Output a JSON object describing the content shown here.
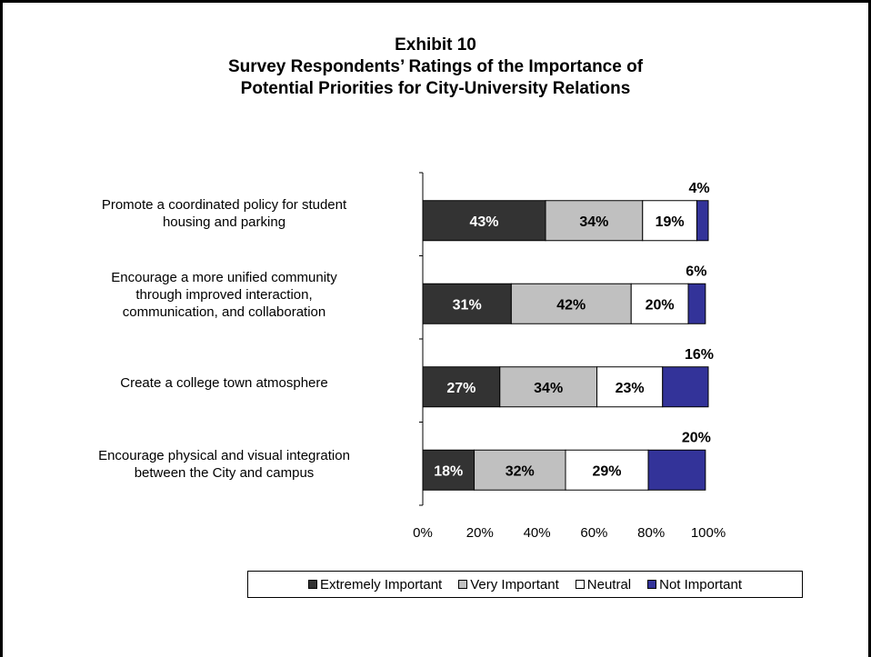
{
  "chart_data": {
    "type": "bar",
    "orientation": "horizontal",
    "stacked": "percent",
    "title": "Exhibit 10",
    "subtitle_lines": [
      "Survey Respondents’ Ratings of the Importance of",
      "Potential Priorities for City-University Relations"
    ],
    "categories": [
      "Promote a coordinated policy for student housing and parking",
      "Encourage a more unified community through improved interaction, communication, and collaboration",
      "Create a college town atmosphere",
      "Encourage physical and visual integration between the City and campus"
    ],
    "category_label_lines": [
      [
        "Promote a coordinated policy for student",
        "housing and parking"
      ],
      [
        "Encourage a more unified community",
        "through improved interaction,",
        "communication, and collaboration"
      ],
      [
        "Create a college town atmosphere"
      ],
      [
        "Encourage physical and visual integration",
        "between the City and campus"
      ]
    ],
    "series": [
      {
        "name": "Extremely Important",
        "color": "#333333",
        "label_color": "#ffffff",
        "values": [
          43,
          31,
          27,
          18
        ]
      },
      {
        "name": "Very Important",
        "color": "#c0c0c0",
        "label_color": "#000000",
        "values": [
          34,
          42,
          34,
          32
        ]
      },
      {
        "name": "Neutral",
        "color": "#ffffff",
        "label_color": "#000000",
        "values": [
          19,
          20,
          23,
          29
        ]
      },
      {
        "name": "Not Important",
        "color": "#333399",
        "label_color": "#000000",
        "values": [
          4,
          6,
          16,
          20
        ]
      }
    ],
    "value_labels": [
      [
        "43%",
        "34%",
        "19%",
        "4%"
      ],
      [
        "31%",
        "42%",
        "20%",
        "6%"
      ],
      [
        "27%",
        "34%",
        "23%",
        "16%"
      ],
      [
        "18%",
        "32%",
        "29%",
        "20%"
      ]
    ],
    "x_ticks": [
      "0%",
      "20%",
      "40%",
      "60%",
      "80%",
      "100%"
    ],
    "xlim": [
      0,
      100
    ],
    "legend_position": "bottom",
    "grid": false
  }
}
